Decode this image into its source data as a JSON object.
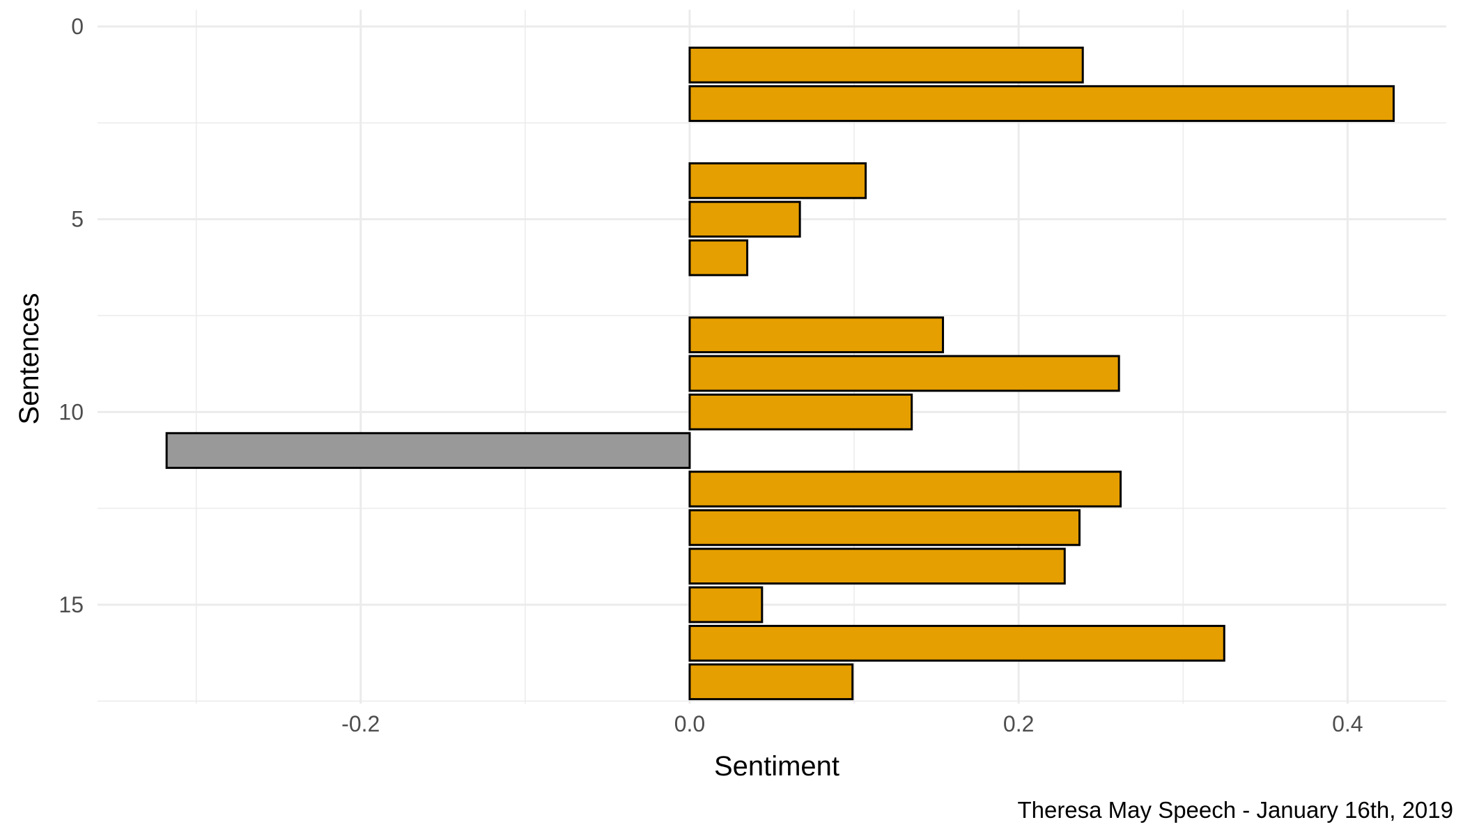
{
  "chart_data": {
    "type": "bar",
    "orientation": "horizontal",
    "xlabel": "Sentiment",
    "ylabel": "Sentences",
    "caption": "Theresa May Speech - January 16th, 2019",
    "xlim": [
      -0.36,
      0.46
    ],
    "ylim": [
      0,
      18
    ],
    "x_major_ticks": [
      -0.2,
      0.0,
      0.2,
      0.4
    ],
    "x_tick_labels": [
      "-0.2",
      "0.0",
      "0.2",
      "0.4"
    ],
    "x_minor_ticks": [
      -0.3,
      -0.1,
      0.1,
      0.3
    ],
    "y_major_ticks": [
      0,
      5,
      10,
      15
    ],
    "y_tick_labels": [
      "0",
      "5",
      "10",
      "15"
    ],
    "y_minor_ticks": [
      2.5,
      7.5,
      12.5,
      17.5
    ],
    "y_reversed": true,
    "grid": true,
    "colors": {
      "positive": "#E69F00",
      "negative": "#999999",
      "outline": "#000000",
      "grid": "#EBEBEB"
    },
    "bars": [
      {
        "sentence": 1,
        "value": 0.239
      },
      {
        "sentence": 2,
        "value": 0.428
      },
      {
        "sentence": 3,
        "value": 0.0
      },
      {
        "sentence": 4,
        "value": 0.107
      },
      {
        "sentence": 5,
        "value": 0.067
      },
      {
        "sentence": 6,
        "value": 0.035
      },
      {
        "sentence": 7,
        "value": 0.0
      },
      {
        "sentence": 8,
        "value": 0.154
      },
      {
        "sentence": 9,
        "value": 0.261
      },
      {
        "sentence": 10,
        "value": 0.135
      },
      {
        "sentence": 11,
        "value": -0.318
      },
      {
        "sentence": 12,
        "value": 0.262
      },
      {
        "sentence": 13,
        "value": 0.237
      },
      {
        "sentence": 14,
        "value": 0.228
      },
      {
        "sentence": 15,
        "value": 0.044
      },
      {
        "sentence": 16,
        "value": 0.325
      },
      {
        "sentence": 17,
        "value": 0.099
      }
    ]
  }
}
